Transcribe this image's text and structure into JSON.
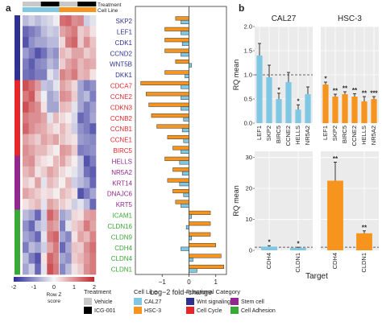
{
  "panel_labels": {
    "a": "a",
    "b": "b"
  },
  "heatmap_header": {
    "treatment": "Treatment",
    "cell_line": "Cell Line"
  },
  "chart_data": [
    {
      "type": "heatmap",
      "rows": [
        "SKP2",
        "LEF1",
        "CDK1",
        "CCND2",
        "WNT5B",
        "DKK1",
        "CDCA7",
        "CCNE2",
        "CDKN3",
        "CCNB2",
        "CCNB1",
        "CCNE1",
        "BIRC5",
        "HELLS",
        "NR5A2",
        "KRT14",
        "DNAJC6",
        "KRT5",
        "ICAM1",
        "CLDN16",
        "CLDN9",
        "CDH4",
        "CLDN4",
        "CLDN1"
      ],
      "row_colors": [
        "#2e3192",
        "#2e3192",
        "#2e3192",
        "#2e3192",
        "#2e3192",
        "#2e3192",
        "#e8252a",
        "#e8252a",
        "#e8252a",
        "#e8252a",
        "#e8252a",
        "#e8252a",
        "#e8252a",
        "#92278f",
        "#92278f",
        "#92278f",
        "#92278f",
        "#92278f",
        "#39a935",
        "#39a935",
        "#39a935",
        "#39a935",
        "#39a935",
        "#39a935"
      ],
      "treatment_bar": [
        "#c8c8c8",
        "#c8c8c8",
        "#c8c8c8",
        "#000000",
        "#000000",
        "#000000",
        "#c8c8c8",
        "#c8c8c8",
        "#c8c8c8",
        "#000000",
        "#000000",
        "#000000"
      ],
      "cell_line_bar": [
        "#7ec8e3",
        "#7ec8e3",
        "#7ec8e3",
        "#7ec8e3",
        "#7ec8e3",
        "#7ec8e3",
        "#f7941d",
        "#f7941d",
        "#f7941d",
        "#f7941d",
        "#f7941d",
        "#f7941d"
      ],
      "values": [
        [
          -0.6,
          -0.4,
          -0.6,
          -0.4,
          -0.3,
          -0.1,
          1.3,
          1.4,
          1.0,
          1.1,
          -0.4,
          -0.2
        ],
        [
          -1.4,
          -1.2,
          -1.0,
          -0.6,
          -0.4,
          -0.5,
          0.8,
          1.0,
          1.2,
          0.4,
          0.6,
          0.2
        ],
        [
          -1.6,
          -1.0,
          -0.8,
          -0.8,
          -0.6,
          -0.6,
          0.3,
          1.2,
          1.4,
          0.4,
          1.0,
          0.5
        ],
        [
          -0.9,
          -1.2,
          -1.6,
          -1.3,
          -0.8,
          -1.0,
          0.6,
          0.4,
          0.8,
          0.8,
          0.4,
          0.6
        ],
        [
          -1.2,
          -1.5,
          -1.1,
          -1.0,
          -0.6,
          -0.8,
          0.4,
          0.8,
          1.0,
          0.6,
          0.8,
          0.7
        ],
        [
          -1.3,
          -1.4,
          -1.2,
          -1.2,
          -0.2,
          -0.5,
          1.1,
          0.9,
          1.2,
          0.6,
          0.7,
          0.2
        ],
        [
          1.6,
          1.3,
          0.9,
          -0.5,
          -0.6,
          -0.2,
          0.8,
          0.6,
          0.3,
          -0.8,
          -1.2,
          -1.0
        ],
        [
          1.2,
          1.5,
          0.6,
          -0.1,
          -0.8,
          -0.6,
          1.0,
          0.9,
          0.4,
          -0.8,
          -0.6,
          -1.2
        ],
        [
          1.6,
          1.2,
          1.0,
          0.2,
          -0.8,
          -0.8,
          0.6,
          0.5,
          -0.2,
          -0.8,
          -1.2,
          -0.9
        ],
        [
          1.2,
          1.0,
          1.0,
          0.8,
          -0.2,
          0.6,
          0.3,
          0.1,
          -0.3,
          -1.4,
          -1.2,
          -0.8
        ],
        [
          1.4,
          1.0,
          0.8,
          0.7,
          0.4,
          0.2,
          0.6,
          0.3,
          -0.4,
          -1.0,
          -1.2,
          -1.5
        ],
        [
          0.8,
          0.6,
          0.4,
          0.8,
          0.6,
          0.8,
          0.5,
          0.3,
          0.2,
          -0.9,
          -1.0,
          -1.1
        ],
        [
          1.0,
          0.8,
          0.6,
          0.6,
          0.3,
          0.1,
          0.9,
          0.8,
          0.4,
          -1.2,
          -1.1,
          -1.0
        ],
        [
          0.9,
          1.0,
          0.4,
          0.2,
          0.1,
          0.6,
          0.8,
          0.4,
          0.1,
          -0.5,
          -1.6,
          -1.2
        ],
        [
          0.6,
          0.8,
          0.2,
          0.4,
          0.8,
          0.6,
          0.3,
          0.1,
          -0.2,
          -0.5,
          -1.3,
          -1.5
        ],
        [
          0.4,
          0.2,
          0.8,
          -0.2,
          0.6,
          0.4,
          0.1,
          0.6,
          -0.4,
          -0.6,
          -0.8,
          -1.4
        ],
        [
          0.8,
          0.6,
          0.4,
          0.2,
          0.3,
          0.1,
          0.6,
          0.4,
          0.2,
          -1.6,
          -1.2,
          -0.8
        ],
        [
          0.2,
          0.4,
          0.6,
          -0.2,
          0.8,
          0.6,
          0.4,
          0.2,
          -0.4,
          -0.2,
          -0.6,
          -1.4
        ],
        [
          -0.6,
          -0.8,
          -1.4,
          -0.4,
          1.4,
          1.0,
          -0.8,
          -0.6,
          0.3,
          0.2,
          0.8,
          0.9
        ],
        [
          -1.0,
          -1.4,
          -0.6,
          -0.4,
          1.0,
          0.8,
          -1.2,
          -0.2,
          0.4,
          0.6,
          1.2,
          0.8
        ],
        [
          -0.8,
          -1.0,
          -1.4,
          -0.2,
          1.2,
          1.4,
          -0.8,
          -1.1,
          0.2,
          0.8,
          0.6,
          1.1
        ],
        [
          -1.2,
          -0.6,
          -0.8,
          -0.4,
          0.8,
          1.2,
          -1.4,
          -0.8,
          0.5,
          0.4,
          1.0,
          1.3
        ],
        [
          -0.6,
          -1.2,
          -1.6,
          0.2,
          1.4,
          1.1,
          -0.8,
          -1.0,
          0.4,
          0.6,
          0.9,
          1.2
        ],
        [
          -0.8,
          -0.4,
          -1.4,
          -0.2,
          1.6,
          1.2,
          -1.1,
          -0.6,
          0.2,
          0.4,
          1.0,
          1.2
        ]
      ],
      "color_scale": {
        "min": -2,
        "max": 2,
        "low": "#2b2b9a",
        "mid": "#f7f7f7",
        "high": "#c1272d"
      },
      "colorbar_ticks": [
        "-2",
        "-1",
        "0",
        "1",
        "2"
      ],
      "colorbar_label": [
        "Row Z",
        "score"
      ]
    },
    {
      "type": "bar",
      "orientation": "horizontal",
      "categories": [
        "SKP2",
        "LEF1",
        "CDK1",
        "CCND2",
        "WNT5B",
        "DKK1",
        "CDCA7",
        "CCNE2",
        "CDKN3",
        "CCNB2",
        "CCNB1",
        "CCNE1",
        "BIRC5",
        "HELLS",
        "NR5A2",
        "KRT14",
        "DNAJC6",
        "KRT5",
        "ICAM1",
        "CLDN16",
        "CLDN9",
        "CDH4",
        "CLDN4",
        "CLDN1"
      ],
      "series": [
        {
          "name": "CAL27",
          "color": "#7ec8e3",
          "values": [
            -0.3,
            -0.3,
            -0.25,
            -0.3,
            0.1,
            -0.15,
            -0.3,
            -0.3,
            -0.3,
            -0.2,
            -0.25,
            -0.2,
            -0.3,
            -0.35,
            -0.25,
            -0.35,
            -0.2,
            -0.3,
            0.1,
            -0.1,
            0.1,
            -0.3,
            0.15,
            0.3
          ]
        },
        {
          "name": "HSC-3",
          "color": "#f7941d",
          "values": [
            -0.5,
            -0.9,
            -0.9,
            -0.9,
            -0.5,
            -0.9,
            -1.8,
            -1.6,
            -1.5,
            -1.4,
            -1.2,
            -0.8,
            -0.6,
            -0.9,
            -0.6,
            -0.8,
            -0.6,
            -0.5,
            0.8,
            0.8,
            0.8,
            1.0,
            1.2,
            1.3
          ]
        }
      ],
      "xlabel": "Log−2 fold−change",
      "xlim": [
        -2,
        1.4
      ],
      "xticks": [
        -1,
        0,
        1
      ],
      "xtick_labels": [
        "−1",
        "0",
        "1"
      ]
    },
    {
      "type": "bar",
      "title": "CAL27",
      "categories": [
        "LEF1",
        "SKP2",
        "BIRC5",
        "CCNE2",
        "HELLS",
        "NR5A2"
      ],
      "values": [
        1.4,
        0.95,
        0.5,
        0.85,
        0.28,
        0.6
      ],
      "errors": [
        0.25,
        0.25,
        0.12,
        0.2,
        0.1,
        0.15
      ],
      "significance": [
        "",
        "",
        "*",
        "",
        "*",
        ""
      ],
      "color": "#7ec8e3",
      "ylabel": "RQ mean",
      "ylim": [
        0,
        2
      ],
      "yticks": [
        0.0,
        0.5,
        1.0,
        1.5,
        2.0
      ],
      "ytick_labels": [
        "0.0",
        "0.5",
        "1.0",
        "1.5",
        "2.0"
      ],
      "reference_line": 1
    },
    {
      "type": "bar",
      "title": "HSC-3",
      "categories": [
        "LEF1",
        "SKP2",
        "BIRC5",
        "CCNE2",
        "HELLS",
        "NR5A2"
      ],
      "values": [
        0.8,
        0.55,
        0.6,
        0.55,
        0.45,
        0.5
      ],
      "errors": [
        0.05,
        0.05,
        0.05,
        0.06,
        0.1,
        0.05
      ],
      "significance": [
        "*",
        "**",
        "**",
        "**",
        "**",
        "***"
      ],
      "color": "#f7941d",
      "ylim": [
        0,
        2
      ]
    },
    {
      "type": "bar",
      "categories": [
        "CDH4",
        "CLDN1"
      ],
      "values": [
        1.2,
        0.8
      ],
      "errors": [
        0.3,
        0.2
      ],
      "significance": [
        "*",
        "*"
      ],
      "color": "#7ec8e3",
      "ylabel": "RQ mean",
      "ylim": [
        0,
        32
      ],
      "yticks": [
        0,
        10,
        20,
        30
      ],
      "ytick_labels": [
        "0",
        "10",
        "20",
        "30"
      ],
      "reference_line": 1
    },
    {
      "type": "bar",
      "categories": [
        "CDH4",
        "CLDN1"
      ],
      "values": [
        22.5,
        5.5
      ],
      "errors": [
        6.0,
        0.8
      ],
      "significance": [
        "**",
        "**"
      ],
      "color": "#f7941d",
      "ylim": [
        0,
        32
      ],
      "reference_line": 1
    }
  ],
  "panel_b_xlabel": "Target",
  "legend": {
    "treatment": {
      "title": "Treatment",
      "items": [
        {
          "label": "Vehicle",
          "color": "#c8c8c8"
        },
        {
          "label": "ICG-001",
          "color": "#000000"
        }
      ]
    },
    "cell_line": {
      "title": "Cell Line",
      "items": [
        {
          "label": "CAL27",
          "color": "#7ec8e3"
        },
        {
          "label": "HSC-3",
          "color": "#f7941d"
        }
      ]
    },
    "functional_category": {
      "title": "Functional Category",
      "items": [
        {
          "label": "Wnt signaling",
          "color": "#2e3192"
        },
        {
          "label": "Cell Cycle",
          "color": "#e8252a"
        },
        {
          "label": "Stem cell",
          "color": "#92278f"
        },
        {
          "label": "Cell Adhesion",
          "color": "#39a935"
        }
      ]
    }
  }
}
